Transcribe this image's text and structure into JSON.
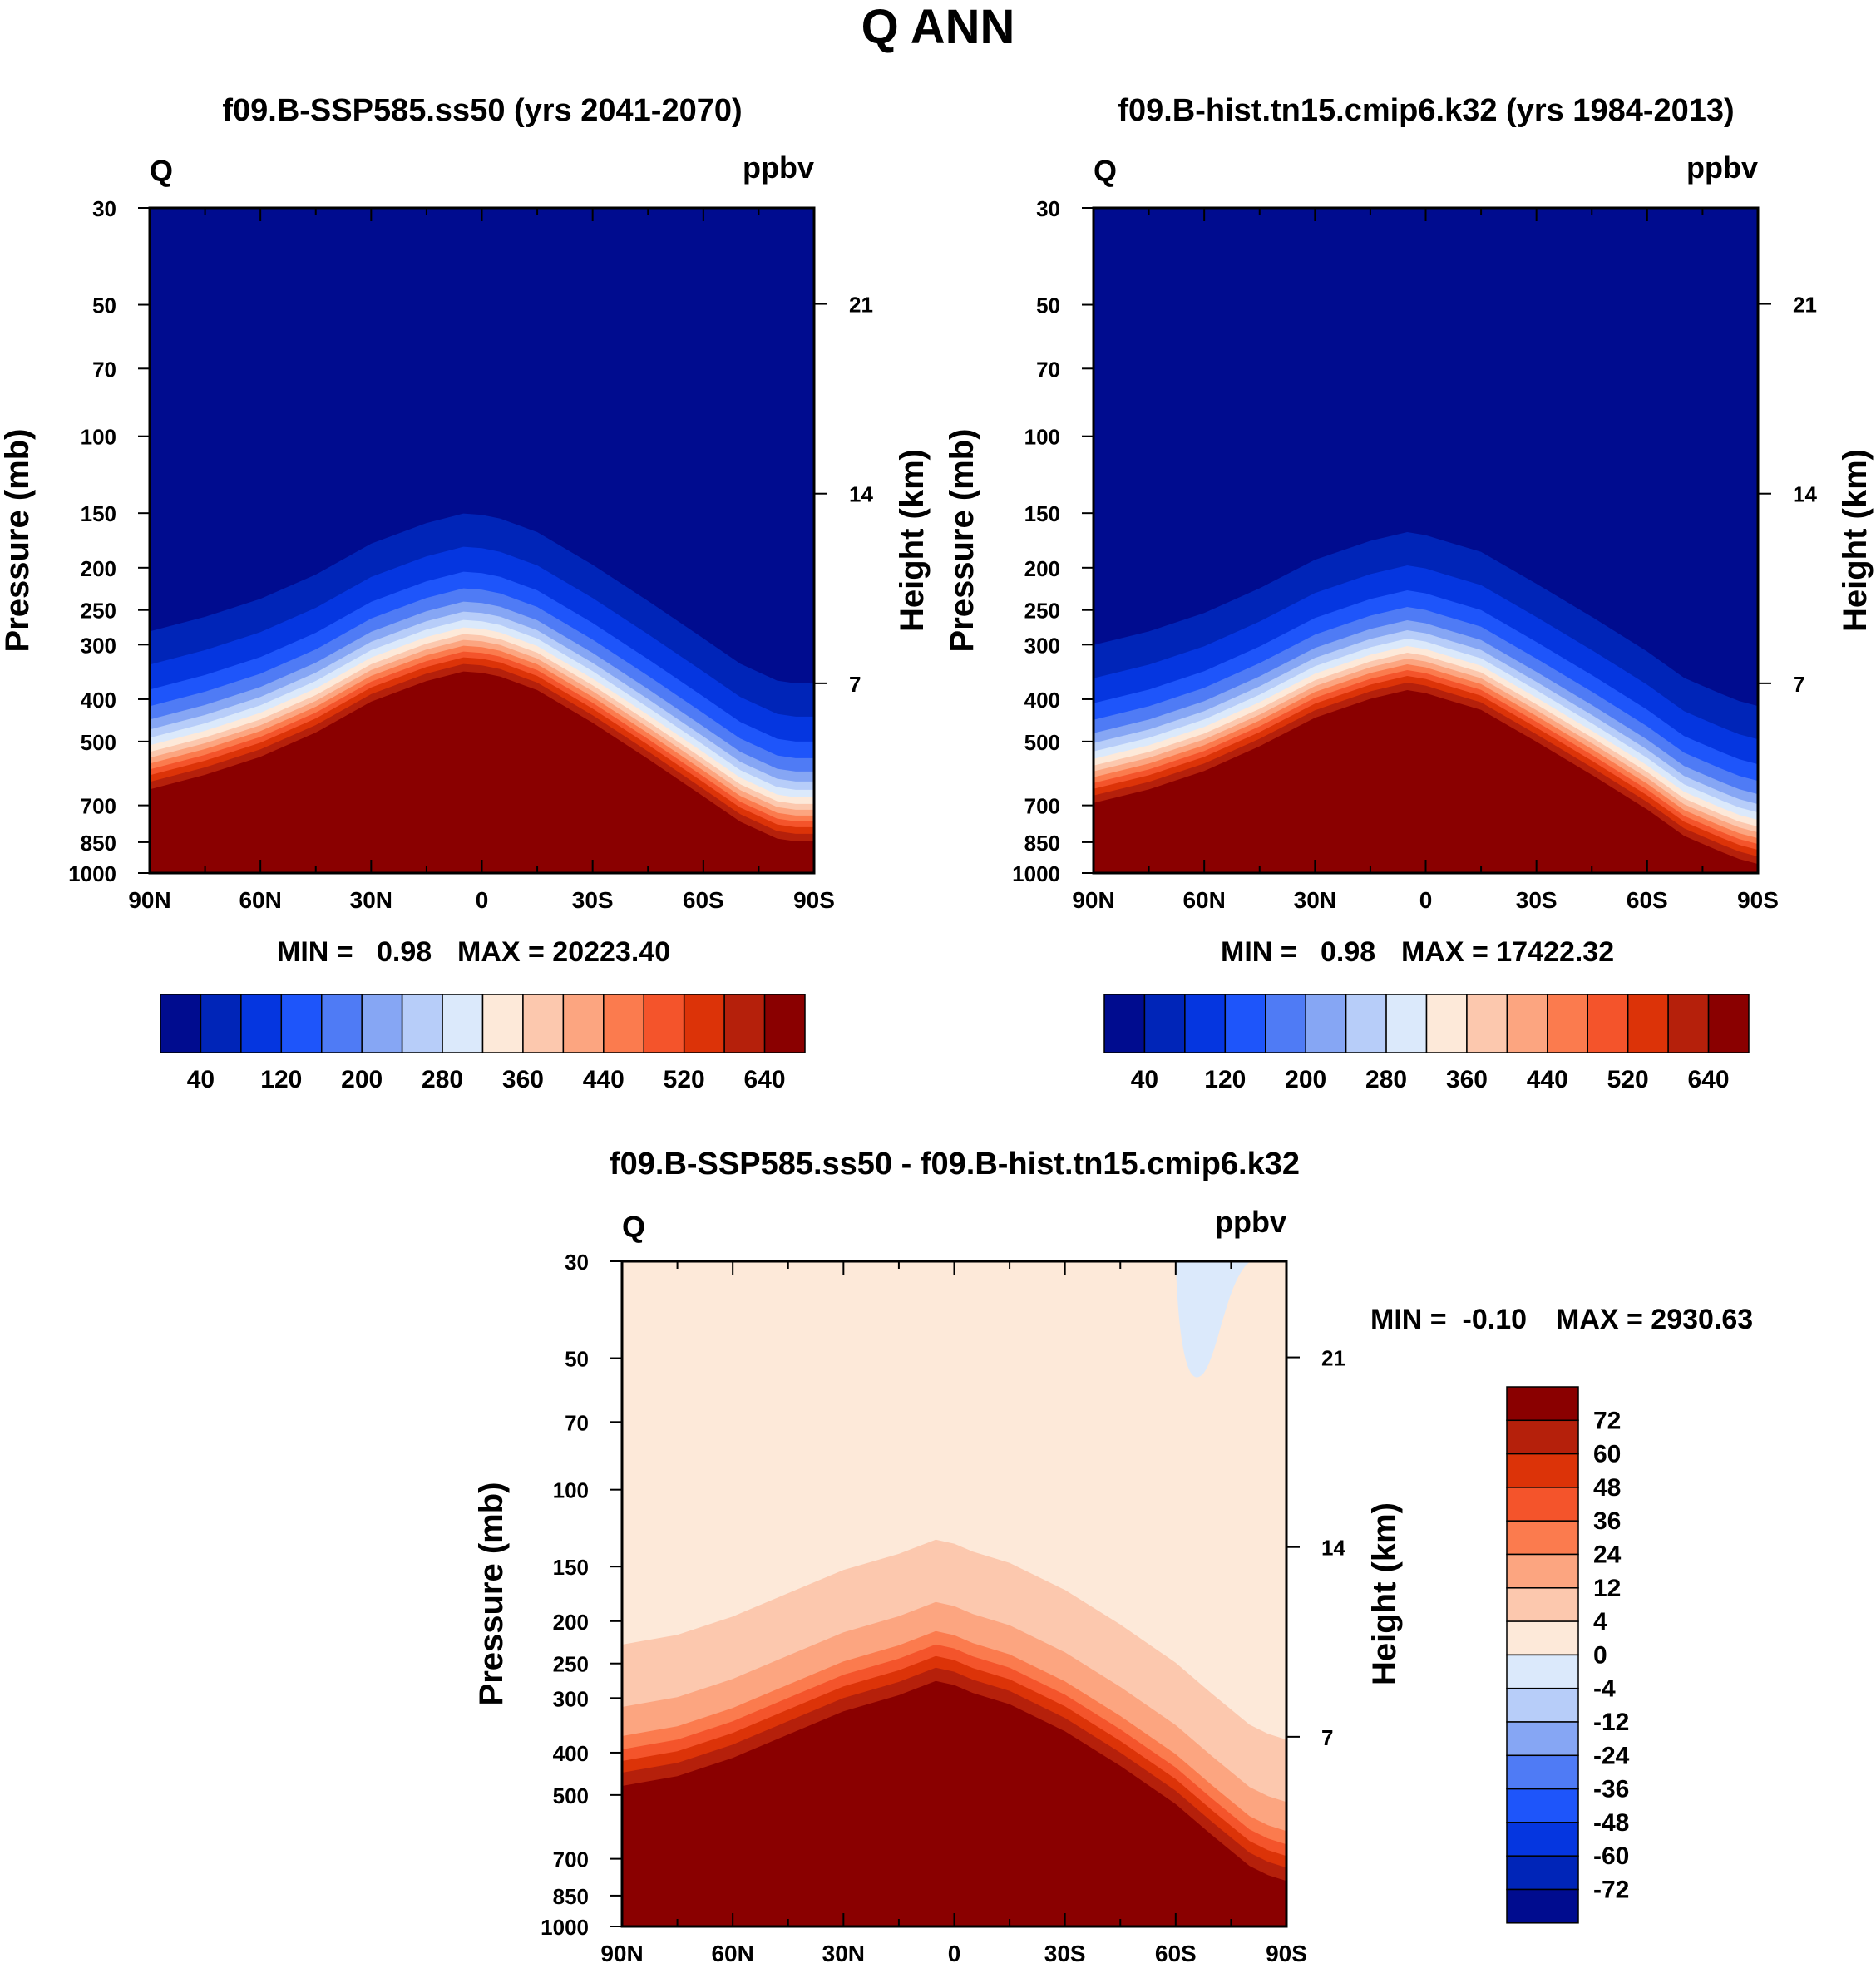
{
  "page_title": "Q ANN",
  "colors": {
    "main_scale": [
      "#000c8f",
      "#0025b8",
      "#0536e0",
      "#1e55fa",
      "#4f7bf5",
      "#86a6f4",
      "#b7cdf9",
      "#dbe9fb",
      "#fde9d9",
      "#fcc8ae",
      "#fca580",
      "#fb7b4e",
      "#f4542b",
      "#dc3308",
      "#b5200b",
      "#8a0000"
    ],
    "diff_scale": [
      "#8a0000",
      "#b5200b",
      "#dc3308",
      "#f4542b",
      "#fb7b4e",
      "#fca580",
      "#fcc8ae",
      "#fde9d9",
      "#dbe9fb",
      "#b7cdf9",
      "#86a6f4",
      "#4f7bf5",
      "#1e55fa",
      "#0536e0",
      "#0025b8",
      "#000c8f"
    ]
  },
  "chart_data": [
    {
      "id": "panel_test",
      "type": "heatmap",
      "title": "f09.B-SSP585.ss50 (yrs 2041-2070)",
      "variable": "Q",
      "units": "ppbv",
      "xlabel": "",
      "ylabel": "Pressure (mb)",
      "ylabel_right": "Height (km)",
      "x_ticks": [
        "90N",
        "60N",
        "30N",
        "0",
        "30S",
        "60S",
        "90S"
      ],
      "x_tick_values": [
        -90,
        -60,
        -30,
        0,
        30,
        60,
        90
      ],
      "y_ticks": [
        30,
        50,
        70,
        100,
        150,
        200,
        250,
        300,
        400,
        500,
        700,
        850,
        1000
      ],
      "y_ticks_right": [
        7,
        14,
        21
      ],
      "ylim": [
        30,
        1000
      ],
      "min_label": "MIN =   0.98",
      "max_label": "MAX = 20223.40",
      "colorbar_labels": [
        "40",
        "120",
        "200",
        "280",
        "360",
        "440",
        "520",
        "640"
      ],
      "transition_profile": {
        "lat": [
          -90,
          -75,
          -60,
          -45,
          -30,
          -15,
          -5,
          0,
          5,
          15,
          30,
          45,
          60,
          70,
          80,
          85,
          90
        ],
        "pressure_mb": [
          540,
          500,
          455,
          400,
          340,
          305,
          290,
          292,
          298,
          320,
          380,
          460,
          560,
          640,
          700,
          710,
          710
        ]
      }
    },
    {
      "id": "panel_control",
      "type": "heatmap",
      "title": "f09.B-hist.tn15.cmip6.k32 (yrs 1984-2013)",
      "variable": "Q",
      "units": "ppbv",
      "xlabel": "",
      "ylabel": "Pressure (mb)",
      "ylabel_right": "Height (km)",
      "x_ticks": [
        "90N",
        "60N",
        "30N",
        "0",
        "30S",
        "60S",
        "90S"
      ],
      "x_tick_values": [
        -90,
        -60,
        -30,
        0,
        30,
        60,
        90
      ],
      "y_ticks": [
        30,
        50,
        70,
        100,
        150,
        200,
        250,
        300,
        400,
        500,
        700,
        850,
        1000
      ],
      "y_ticks_right": [
        7,
        14,
        21
      ],
      "ylim": [
        30,
        1000
      ],
      "min_label": "MIN =   0.98",
      "max_label": "MAX = 17422.32",
      "colorbar_labels": [
        "40",
        "120",
        "200",
        "280",
        "360",
        "440",
        "520",
        "640"
      ],
      "transition_profile": {
        "lat": [
          -90,
          -75,
          -60,
          -45,
          -30,
          -15,
          -5,
          0,
          5,
          15,
          30,
          45,
          60,
          70,
          80,
          85,
          90
        ],
        "pressure_mb": [
          580,
          540,
          490,
          430,
          370,
          335,
          320,
          325,
          335,
          355,
          420,
          500,
          600,
          690,
          750,
          780,
          800
        ]
      }
    },
    {
      "id": "panel_diff",
      "type": "heatmap",
      "title": "f09.B-SSP585.ss50 - f09.B-hist.tn15.cmip6.k32",
      "variable": "Q",
      "units": "ppbv",
      "xlabel": "",
      "ylabel": "Pressure (mb)",
      "ylabel_right": "Height (km)",
      "x_ticks": [
        "90N",
        "60N",
        "30N",
        "0",
        "30S",
        "60S",
        "90S"
      ],
      "x_tick_values": [
        -90,
        -60,
        -30,
        0,
        30,
        60,
        90
      ],
      "y_ticks": [
        30,
        50,
        70,
        100,
        150,
        200,
        250,
        300,
        400,
        500,
        700,
        850,
        1000
      ],
      "y_ticks_right": [
        7,
        14,
        21
      ],
      "ylim": [
        30,
        1000
      ],
      "min_label": "MIN =  -0.10",
      "max_label": "MAX = 2930.63",
      "colorbar_labels": [
        "72",
        "60",
        "48",
        "36",
        "24",
        "12",
        "4",
        "0",
        "-4",
        "-12",
        "-24",
        "-36",
        "-48",
        "-60",
        "-72"
      ],
      "transition_profile": {
        "lat": [
          -90,
          -75,
          -60,
          -45,
          -30,
          -15,
          -5,
          0,
          5,
          15,
          30,
          45,
          60,
          70,
          80,
          85,
          90
        ],
        "pressure_mb": [
          400,
          380,
          345,
          305,
          270,
          248,
          230,
          235,
          245,
          260,
          300,
          360,
          440,
          520,
          610,
          640,
          660
        ]
      },
      "negative_region": {
        "lat": [
          60,
          90
        ],
        "pressure_mb": [
          30,
          55
        ],
        "value": "-4 to 0"
      }
    }
  ]
}
